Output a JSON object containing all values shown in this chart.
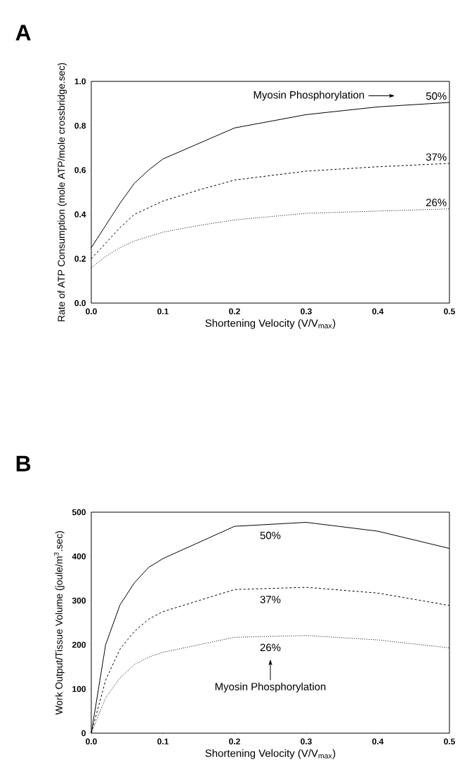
{
  "chart_data": [
    {
      "type": "line",
      "title": "A",
      "xlabel": "Shortening Velocity (V/V$_{max}$)",
      "ylabel": "Rate of ATP Consumption (mole ATP/mole crossbridge.sec)",
      "x": [
        0,
        0.02,
        0.04,
        0.06,
        0.08,
        0.1,
        0.15,
        0.2,
        0.3,
        0.4,
        0.5
      ],
      "series": [
        {
          "name": "50%",
          "color": "#000000",
          "line_style": "solid",
          "values": [
            0.25,
            0.35,
            0.45,
            0.54,
            0.6,
            0.65,
            0.72,
            0.79,
            0.85,
            0.885,
            0.905
          ]
        },
        {
          "name": "37%",
          "color": "#000000",
          "line_style": "dashed",
          "values": [
            0.2,
            0.27,
            0.34,
            0.4,
            0.43,
            0.46,
            0.51,
            0.555,
            0.595,
            0.615,
            0.63
          ]
        },
        {
          "name": "26%",
          "color": "#000000",
          "line_style": "dotted",
          "values": [
            0.16,
            0.21,
            0.25,
            0.28,
            0.3,
            0.32,
            0.35,
            0.375,
            0.405,
            0.415,
            0.425
          ]
        }
      ],
      "xlim": [
        0,
        0.5
      ],
      "xticks": [
        {
          "value": 0,
          "label": "0.0"
        },
        0.1,
        0.2,
        0.3,
        0.4,
        0.5
      ],
      "ylim": [
        0,
        1
      ],
      "yticks": [
        {
          "value": 0,
          "label": "0.0"
        },
        0.2,
        0.4,
        0.6,
        0.8,
        {
          "value": 1,
          "label": "1.0"
        }
      ],
      "annotations": [
        "Myosin Phosphorylation"
      ]
    },
    {
      "type": "line",
      "title": "B",
      "xlabel": "Shortening Velocity (V/V$_{max}$)",
      "ylabel": "Work Output/Tissue Volume (joule/m$^{3}$.sec)",
      "x": [
        0,
        0.02,
        0.04,
        0.06,
        0.08,
        0.1,
        0.2,
        0.3,
        0.4,
        0.5
      ],
      "series": [
        {
          "name": "50%",
          "color": "#000000",
          "line_style": "solid",
          "values": [
            0,
            200,
            290,
            340,
            375,
            395,
            468,
            477,
            457,
            418
          ]
        },
        {
          "name": "37%",
          "color": "#000000",
          "line_style": "dashed",
          "values": [
            0,
            120,
            190,
            230,
            258,
            275,
            325,
            330,
            317,
            289
          ]
        },
        {
          "name": "26%",
          "color": "#000000",
          "line_style": "dotted",
          "values": [
            0,
            80,
            125,
            155,
            172,
            183,
            217,
            221,
            211,
            193
          ]
        }
      ],
      "xlim": [
        0,
        0.5
      ],
      "xticks": [
        {
          "value": 0,
          "label": "0.0"
        },
        0.1,
        0.2,
        0.3,
        0.4,
        0.5
      ],
      "ylim": [
        0,
        500
      ],
      "yticks": [
        0,
        100,
        200,
        300,
        400,
        500
      ],
      "annotations": [
        "Myosin Phosphorylation"
      ]
    }
  ]
}
